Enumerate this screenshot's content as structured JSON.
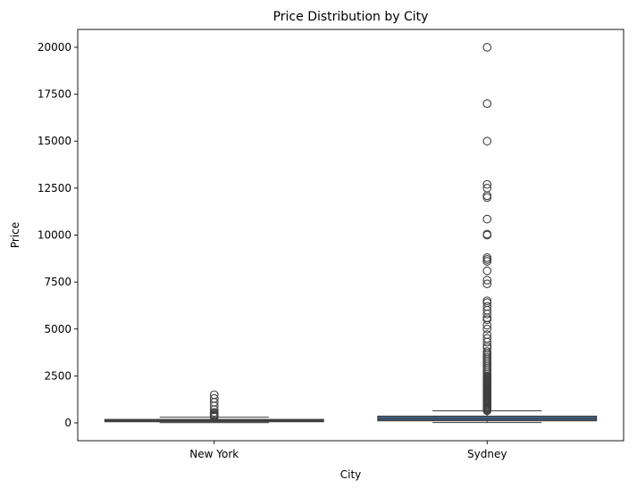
{
  "chart_data": {
    "type": "box",
    "title": "Price Distribution by City",
    "xlabel": "City",
    "ylabel": "Price",
    "ylim": [
      -950,
      20950
    ],
    "yticks": [
      0,
      2500,
      5000,
      7500,
      10000,
      12500,
      15000,
      17500,
      20000
    ],
    "ytick_labels": [
      "0",
      "2500",
      "5000",
      "7500",
      "10000",
      "12500",
      "15000",
      "17500",
      "20000"
    ],
    "grid": false,
    "legend": false,
    "categories": [
      "New York",
      "Sydney"
    ],
    "boxes": [
      {
        "category": "New York",
        "color": "#3b75af",
        "q1": 70,
        "median": 105,
        "q3": 175,
        "whisker_low": 10,
        "whisker_high": 300,
        "outliers": [
          320,
          350,
          380,
          420,
          480,
          560,
          700,
          900,
          1100,
          1300,
          1500
        ]
      },
      {
        "category": "Sydney",
        "color": "#3b75af",
        "q1": 120,
        "median": 220,
        "q3": 350,
        "whisker_low": 20,
        "whisker_high": 640,
        "outliers": [
          650,
          700,
          750,
          800,
          850,
          900,
          950,
          1000,
          1050,
          1100,
          1150,
          1200,
          1250,
          1300,
          1350,
          1400,
          1450,
          1500,
          1550,
          1600,
          1650,
          1700,
          1750,
          1800,
          1850,
          1900,
          1950,
          2000,
          2050,
          2100,
          2150,
          2200,
          2250,
          2300,
          2350,
          2400,
          2450,
          2500,
          2600,
          2700,
          2800,
          2900,
          3000,
          3100,
          3200,
          3300,
          3400,
          3500,
          3600,
          3700,
          3800,
          4000,
          4100,
          4300,
          4500,
          4700,
          5000,
          5200,
          5500,
          5600,
          5800,
          6000,
          6200,
          6400,
          6500,
          7400,
          7600,
          8100,
          8600,
          8700,
          8800,
          10000,
          10050,
          10850,
          12000,
          12100,
          12500,
          12700,
          15000,
          17000,
          20000
        ]
      }
    ]
  }
}
